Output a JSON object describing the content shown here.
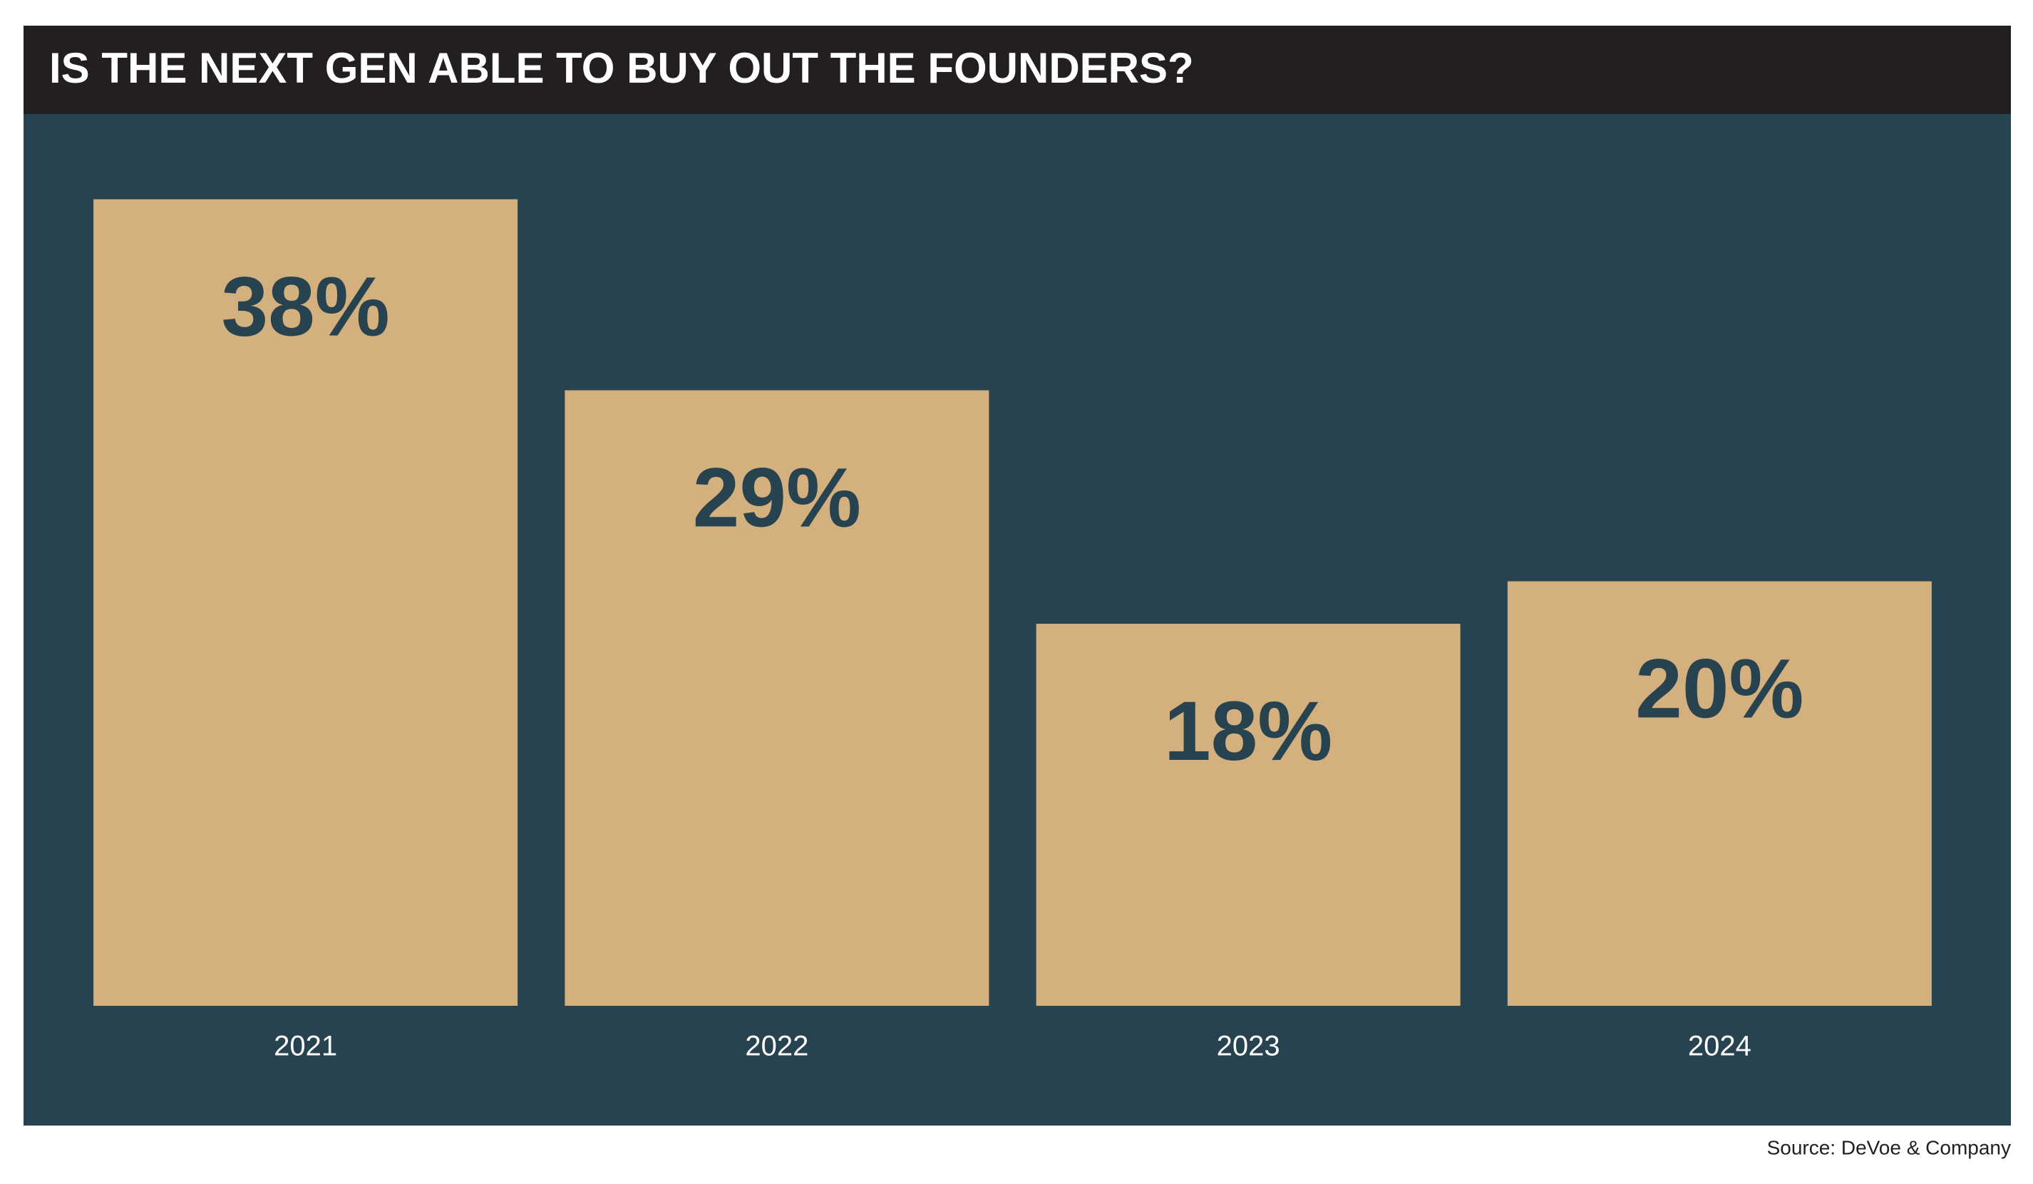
{
  "chart_data": {
    "type": "bar",
    "title": "IS THE NEXT GEN ABLE TO BUY OUT THE FOUNDERS?",
    "categories": [
      "2021",
      "2022",
      "2023",
      "2024"
    ],
    "values": [
      38,
      29,
      18,
      20
    ],
    "value_labels": [
      "38%",
      "29%",
      "18%",
      "20%"
    ],
    "color": "#d5b07f",
    "ylim": [
      0,
      40
    ],
    "source": "Source: DeVoe & Company"
  }
}
